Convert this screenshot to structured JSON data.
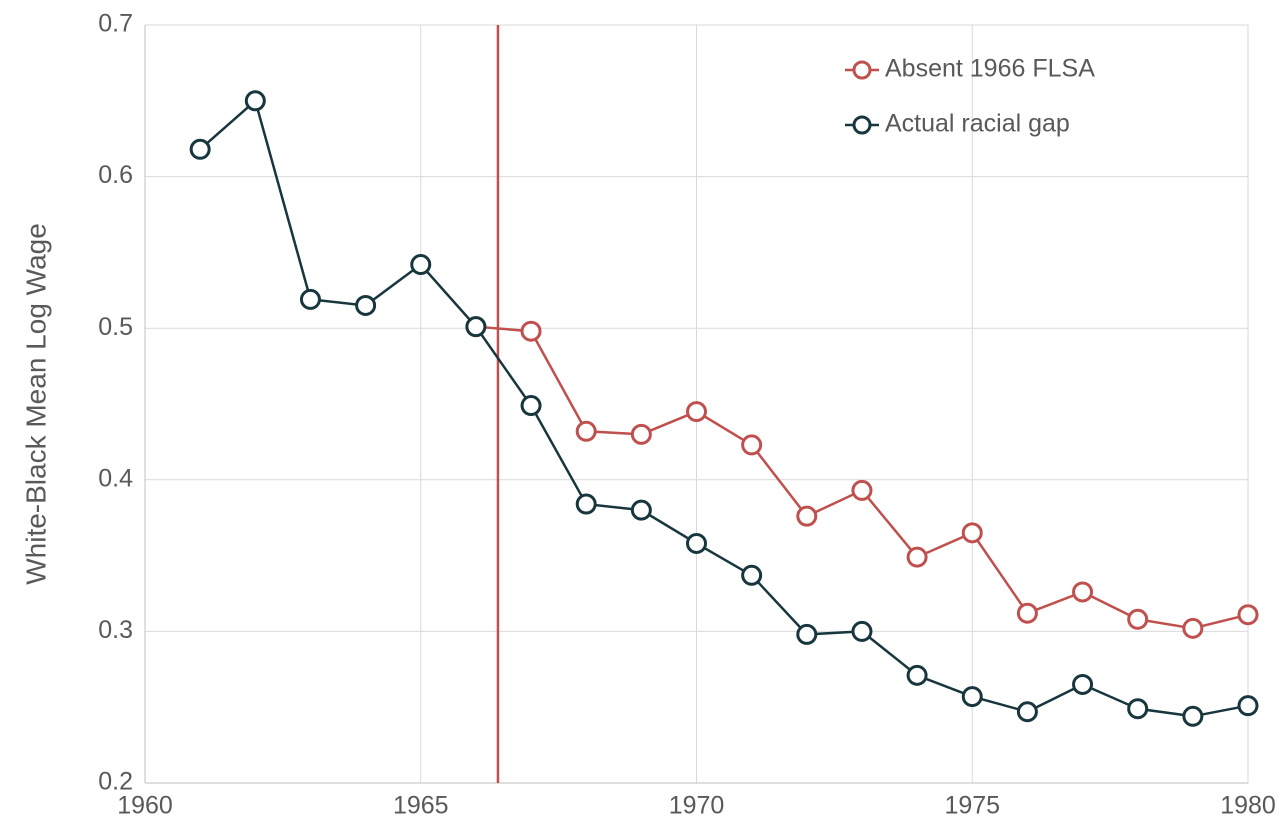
{
  "chart_data": {
    "type": "line",
    "y_label": "White-Black Mean Log Wage",
    "x": [
      1961,
      1962,
      1963,
      1964,
      1965,
      1966,
      1967,
      1968,
      1969,
      1970,
      1971,
      1972,
      1973,
      1974,
      1975,
      1976,
      1977,
      1978,
      1979,
      1980
    ],
    "series": [
      {
        "name": "Absent 1966 FLSA",
        "color": "#c0504d",
        "values": [
          null,
          null,
          null,
          null,
          null,
          0.501,
          0.498,
          0.432,
          0.43,
          0.445,
          0.423,
          0.376,
          0.393,
          0.349,
          0.365,
          0.312,
          0.326,
          0.308,
          0.302,
          0.311
        ]
      },
      {
        "name": "Actual racial gap",
        "color": "#17363d",
        "values": [
          0.618,
          0.65,
          0.519,
          0.515,
          0.542,
          0.501,
          0.449,
          0.384,
          0.38,
          0.358,
          0.337,
          0.298,
          0.3,
          0.271,
          0.257,
          0.247,
          0.265,
          0.249,
          0.244,
          0.251
        ]
      }
    ],
    "xlim": [
      1960,
      1980
    ],
    "xticks": [
      1960,
      1965,
      1970,
      1975,
      1980
    ],
    "ylim": [
      0.2,
      0.7
    ],
    "yticks": [
      0.2,
      0.3,
      0.4,
      0.5,
      0.6,
      0.7
    ],
    "grid": true,
    "legend": "upper right",
    "vline": {
      "x": 1966.4,
      "color": "#c0504d"
    }
  }
}
